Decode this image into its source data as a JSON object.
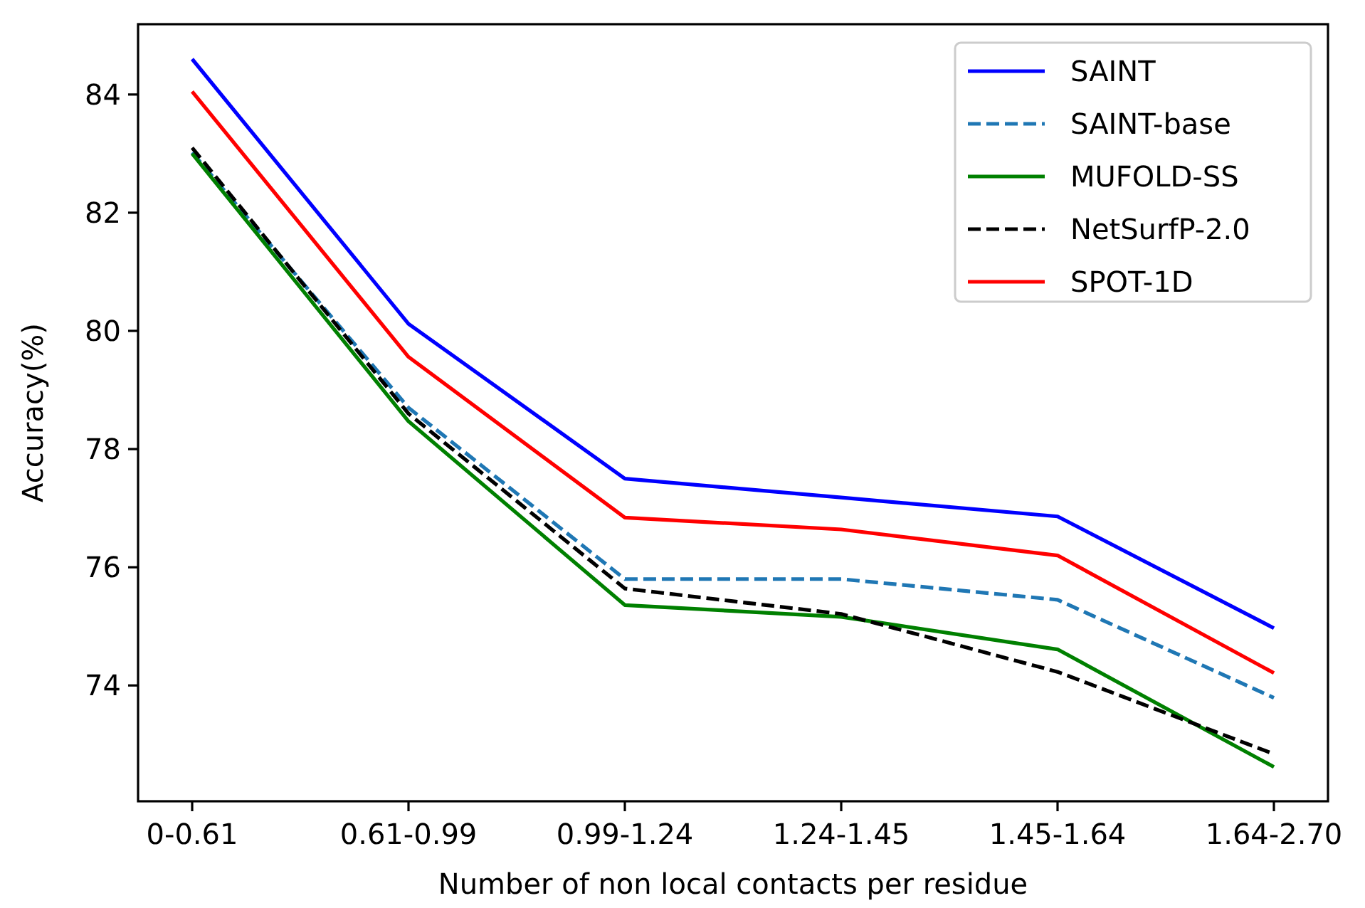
{
  "chart_data": {
    "type": "line",
    "xlabel": "Number of non local contacts per residue",
    "ylabel": "Accuracy(%)",
    "categories": [
      "0-0.61",
      "0.61-0.99",
      "0.99-1.24",
      "1.24-1.45",
      "1.45-1.64",
      "1.64-2.70"
    ],
    "series": [
      {
        "name": "SAINT",
        "color": "#0000ff",
        "line_style": "solid",
        "values": [
          84.6,
          80.12,
          77.5,
          77.18,
          76.86,
          74.97
        ]
      },
      {
        "name": "SAINT-base",
        "color": "#1f77b4",
        "line_style": "dashed",
        "values": [
          83.02,
          78.7,
          75.8,
          75.8,
          75.45,
          73.79
        ]
      },
      {
        "name": "MUFOLD-SS",
        "color": "#008000",
        "line_style": "solid",
        "values": [
          83.0,
          78.47,
          75.36,
          75.16,
          74.61,
          72.62
        ]
      },
      {
        "name": "NetSurfP-2.0",
        "color": "#000000",
        "line_style": "dashed",
        "values": [
          83.1,
          78.6,
          75.64,
          75.21,
          74.23,
          72.84
        ]
      },
      {
        "name": "SPOT-1D",
        "color": "#ff0000",
        "line_style": "solid",
        "values": [
          84.05,
          79.56,
          76.84,
          76.64,
          76.2,
          74.21
        ]
      }
    ],
    "ylim": [
      72.04,
      85.19
    ],
    "yticks": [
      74,
      76,
      78,
      80,
      82,
      84
    ],
    "legend": "top right",
    "grid": false
  }
}
